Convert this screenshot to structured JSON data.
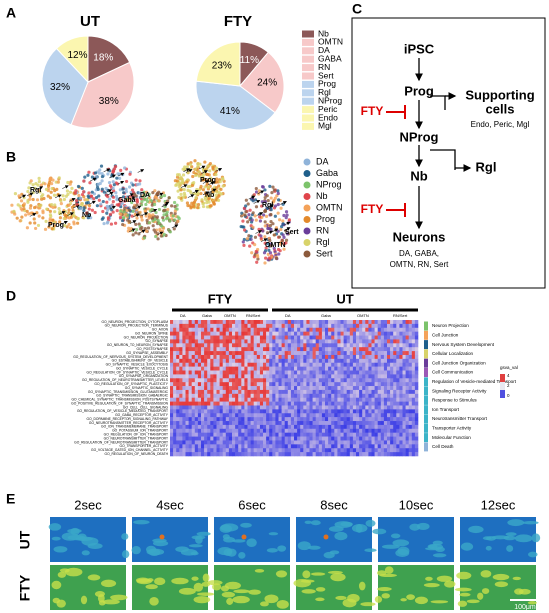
{
  "chart_data": [
    {
      "type": "pie",
      "title": "UT",
      "values": [
        18,
        38,
        32,
        12
      ],
      "value_labels": [
        "18%",
        "38%",
        "32%",
        "12%"
      ],
      "colors": [
        "#8c5858",
        "#f7c9c9",
        "#bcd4ee",
        "#fbf6b0"
      ]
    },
    {
      "type": "pie",
      "title": "FTY",
      "values": [
        11,
        24,
        41,
        23
      ],
      "value_labels": [
        "11%",
        "24%",
        "41%",
        "23%"
      ],
      "colors": [
        "#8c5858",
        "#f7c9c9",
        "#bcd4ee",
        "#fbf6b0"
      ]
    }
  ],
  "panel_labels": [
    "A",
    "B",
    "C",
    "D",
    "E"
  ],
  "legend_a": [
    {
      "name": "Nb",
      "color": "#8c5858"
    },
    {
      "name": "OMTN",
      "color": "#f7c9c9"
    },
    {
      "name": "DA",
      "color": "#f7c9c9"
    },
    {
      "name": "GABA",
      "color": "#f7c9c9"
    },
    {
      "name": "RN",
      "color": "#f7c9c9"
    },
    {
      "name": "Sert",
      "color": "#f7c9c9"
    },
    {
      "name": "Prog",
      "color": "#bcd4ee"
    },
    {
      "name": "Rgl",
      "color": "#bcd4ee"
    },
    {
      "name": "NProg",
      "color": "#bcd4ee"
    },
    {
      "name": "Peric",
      "color": "#fbf6b0"
    },
    {
      "name": "Endo",
      "color": "#fbf6b0"
    },
    {
      "name": "Mgl",
      "color": "#fbf6b0"
    }
  ],
  "legend_b": [
    {
      "name": "DA",
      "color": "#8fb3d9"
    },
    {
      "name": "Gaba",
      "color": "#1f5f8b"
    },
    {
      "name": "NProg",
      "color": "#7cc36b"
    },
    {
      "name": "Nb",
      "color": "#e0444b"
    },
    {
      "name": "OMTN",
      "color": "#f4a259"
    },
    {
      "name": "Prog",
      "color": "#e3892b"
    },
    {
      "name": "RN",
      "color": "#6a3d9a"
    },
    {
      "name": "Rgl",
      "color": "#d8d36a"
    },
    {
      "name": "Sert",
      "color": "#8c5a3c"
    }
  ],
  "umap_labels": [
    "Rgl",
    "Prog",
    "Nb",
    "Gaba",
    "DA",
    "Prog",
    "Nb",
    "Rgl",
    "Sert",
    "OMTN"
  ],
  "diagram": {
    "ipsc": "iPSC",
    "prog": "Prog",
    "fty1": "FTY",
    "supporting": "Supporting",
    "supporting2": "cells",
    "supporting_sub": "Endo, Peric, Mgl",
    "nprog": "NProg",
    "rgl": "Rgl",
    "nb": "Nb",
    "fty2": "FTY",
    "neurons": "Neurons",
    "neurons_sub1": "DA, GABA,",
    "neurons_sub2": "OMTN, RN, Sert"
  },
  "heatmap": {
    "groups": [
      "FTY",
      "UT"
    ],
    "subgroups": [
      "DA",
      "Gaba",
      "OMTN",
      "RN/Sert",
      "DA",
      "Gaba",
      "OMTN",
      "RN/Sert"
    ],
    "rows": [
      "GO_NEURON_PROJECTION_CYTOPLASM",
      "GO_NEURON_PROJECTION_TERMINUS",
      "GO_AXON",
      "GO_NEURON_SPINE",
      "GO_NEURON_PROJECTION",
      "GO_SYNAPSE",
      "GO_NEURON_TO_NEURON_SYNAPSE",
      "GO_POSTSYNAPSE",
      "GO_SYNAPSE_ASSEMBLY",
      "GO_REGULATION_OF_NERVOUS_SYSTEM_DEVELOPMENT",
      "GO_ESTABLISHMENT_OF_VESICLE",
      "GO_SYNAPTIC_VESICLE_EXOCYTOSIS",
      "GO_SYNAPTIC_VESICLE_CYCLE",
      "GO_REGULATION_OF_SYNAPTIC_VESICLE_CYCLE",
      "GO_SYNAPSE_ORGANIZATION",
      "GO_REGULATION_OF_NEUROTRANSMITTER_LEVELS",
      "GO_REGULATION_OF_SYNAPTIC_PLASTICITY",
      "GO_SYNAPTIC_SIGNALING",
      "GO_SYNAPTIC_TRANSMISSION_GLUTAMATERGIC",
      "GO_SYNAPTIC_TRANSMISSION_GABAERGIC",
      "GO_CHEMICAL_SYNAPTIC_TRANSMISSION_POSTSYNAPTIC",
      "GO_POSITIVE_REGULATION_OF_SYNAPTIC_TRANSMISSION",
      "GO_CELL_CELL_SIGNALING",
      "GO_REGULATION_OF_VESICLE_MEDIATED_TRANSPORT",
      "GO_GABA_RECEPTOR_ACTIVITY",
      "GO_DOPAMINE_RECEPTOR_SIGNALING_PATHWAY",
      "GO_NEUROTRANSMITTER_RECEPTOR_ACTIVITY",
      "GO_ION_TRANSMEMBRANE_TRANSPORT",
      "GO_POTASSIUM_ION_TRANSPORT",
      "GO_REGULATION_OF_ION_TRANSPORT",
      "GO_NEUROTRANSMITTER_TRANSPORT",
      "GO_REGULATION_OF_NEUROTRANSMITTER_TRANSPORT",
      "GO_TRANSPORTER_ACTIVITY",
      "GO_VOLTAGE_GATED_ION_CHANNEL_ACTIVITY",
      "GO_REGULATION_OF_NEURON_DEATH"
    ],
    "categories": [
      "Neuron Projection",
      "Cell Junction",
      "Nervous System Development",
      "Cellular Localization",
      "Cell Junction Organization",
      "Cell Communication",
      "Regulation of Vesicle-mediated Transport",
      "Signaling Receptor Activity",
      "Response to Stimulus",
      "Ion Transport",
      "Neurotransmitter Transport",
      "Transporter Activity",
      "Molecular Function",
      "Cell Death"
    ],
    "legend_title": "gsva_val",
    "legend_ticks": [
      "4",
      "2",
      "0"
    ]
  },
  "imaging": {
    "times": [
      "2sec",
      "4sec",
      "6sec",
      "8sec",
      "10sec",
      "12sec"
    ],
    "rows": [
      "UT",
      "FTY"
    ],
    "scale": "100μm"
  }
}
